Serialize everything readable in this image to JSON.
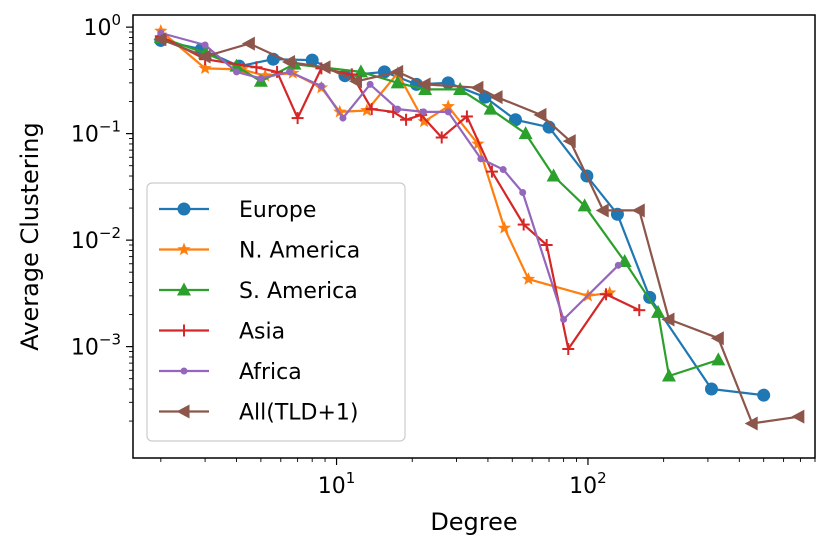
{
  "chart_data": {
    "type": "line",
    "xlabel": "Degree",
    "ylabel": "Average Clustering",
    "xscale": "log",
    "yscale": "log",
    "xlim": [
      1.55,
      800
    ],
    "ylim": [
      9e-05,
      1.3
    ],
    "x_ticks": [
      {
        "value": 10,
        "label": "10",
        "exp": "1"
      },
      {
        "value": 100,
        "label": "10",
        "exp": "2"
      }
    ],
    "y_ticks": [
      {
        "value": 1,
        "label": "10",
        "exp": "0"
      },
      {
        "value": 0.1,
        "label": "10",
        "exp": "−1"
      },
      {
        "value": 0.01,
        "label": "10",
        "exp": "−2"
      },
      {
        "value": 0.001,
        "label": "10",
        "exp": "−3"
      }
    ],
    "grid": false,
    "legend_position": "lower-left",
    "series": [
      {
        "name": "Europe",
        "color": "#1f77b4",
        "marker": "circle",
        "points": [
          [
            2,
            0.75
          ],
          [
            2.9,
            0.62
          ],
          [
            4.1,
            0.43
          ],
          [
            5.6,
            0.5
          ],
          [
            8,
            0.49
          ],
          [
            10.8,
            0.35
          ],
          [
            15.5,
            0.38
          ],
          [
            20.8,
            0.29
          ],
          [
            27.8,
            0.3
          ],
          [
            39,
            0.22
          ],
          [
            51.5,
            0.135
          ],
          [
            70,
            0.115
          ],
          [
            99,
            0.04
          ],
          [
            131,
            0.0175
          ],
          [
            176,
            0.0029
          ],
          [
            310,
            0.0004
          ],
          [
            500,
            0.00035
          ]
        ]
      },
      {
        "name": "N. America",
        "color": "#ff7f0e",
        "marker": "star",
        "points": [
          [
            2,
            0.92
          ],
          [
            3,
            0.41
          ],
          [
            4.2,
            0.4
          ],
          [
            5.2,
            0.35
          ],
          [
            6.7,
            0.37
          ],
          [
            8.7,
            0.27
          ],
          [
            10.3,
            0.16
          ],
          [
            13.2,
            0.165
          ],
          [
            17.5,
            0.37
          ],
          [
            22.3,
            0.13
          ],
          [
            27.8,
            0.18
          ],
          [
            36.5,
            0.08
          ],
          [
            46.5,
            0.013
          ],
          [
            58,
            0.0043
          ],
          [
            100,
            0.003
          ],
          [
            122,
            0.0032
          ]
        ]
      },
      {
        "name": "S. America",
        "color": "#2ca02c",
        "marker": "triangle-up",
        "points": [
          [
            2,
            0.8
          ],
          [
            3,
            0.57
          ],
          [
            4,
            0.43
          ],
          [
            5,
            0.31
          ],
          [
            6.8,
            0.45
          ],
          [
            12.5,
            0.38
          ],
          [
            17.5,
            0.3
          ],
          [
            22.5,
            0.26
          ],
          [
            31,
            0.26
          ],
          [
            41,
            0.17
          ],
          [
            56.5,
            0.1
          ],
          [
            73,
            0.04
          ],
          [
            97,
            0.021
          ],
          [
            140,
            0.0063
          ],
          [
            190,
            0.0021
          ],
          [
            210,
            0.00053
          ],
          [
            330,
            0.00075
          ]
        ]
      },
      {
        "name": "Asia",
        "color": "#d62728",
        "marker": "plus",
        "points": [
          [
            2,
            0.82
          ],
          [
            3,
            0.5
          ],
          [
            4.8,
            0.42
          ],
          [
            5.8,
            0.38
          ],
          [
            7,
            0.14
          ],
          [
            8.7,
            0.41
          ],
          [
            11.5,
            0.36
          ],
          [
            13.8,
            0.17
          ],
          [
            16.8,
            0.16
          ],
          [
            18.9,
            0.135
          ],
          [
            21.7,
            0.15
          ],
          [
            26.2,
            0.092
          ],
          [
            33,
            0.145
          ],
          [
            41.5,
            0.044
          ],
          [
            55.5,
            0.014
          ],
          [
            68.5,
            0.009
          ],
          [
            83.5,
            0.00095
          ],
          [
            118,
            0.0031
          ],
          [
            160,
            0.0022
          ]
        ]
      },
      {
        "name": "Africa",
        "color": "#9467bd",
        "marker": "dot",
        "points": [
          [
            2,
            0.88
          ],
          [
            3,
            0.68
          ],
          [
            4,
            0.38
          ],
          [
            5,
            0.33
          ],
          [
            6.5,
            0.38
          ],
          [
            8.7,
            0.28
          ],
          [
            10.6,
            0.14
          ],
          [
            13.6,
            0.29
          ],
          [
            17.5,
            0.17
          ],
          [
            22.2,
            0.16
          ],
          [
            27.8,
            0.16
          ],
          [
            37.5,
            0.058
          ],
          [
            46,
            0.046
          ],
          [
            55,
            0.028
          ],
          [
            80,
            0.0018
          ],
          [
            132,
            0.0058
          ]
        ]
      },
      {
        "name": "All(TLD+1)",
        "color": "#8c564b",
        "marker": "triangle-left",
        "points": [
          [
            2,
            0.77
          ],
          [
            3,
            0.53
          ],
          [
            4.5,
            0.7
          ],
          [
            6.5,
            0.47
          ],
          [
            9,
            0.42
          ],
          [
            12,
            0.31
          ],
          [
            17.5,
            0.38
          ],
          [
            22.5,
            0.29
          ],
          [
            36.5,
            0.27
          ],
          [
            43.5,
            0.22
          ],
          [
            65,
            0.15
          ],
          [
            85,
            0.085
          ],
          [
            115,
            0.019
          ],
          [
            160,
            0.019
          ],
          [
            210,
            0.0018
          ],
          [
            330,
            0.0012
          ],
          [
            450,
            0.00019
          ],
          [
            690,
            0.00022
          ]
        ]
      }
    ]
  }
}
